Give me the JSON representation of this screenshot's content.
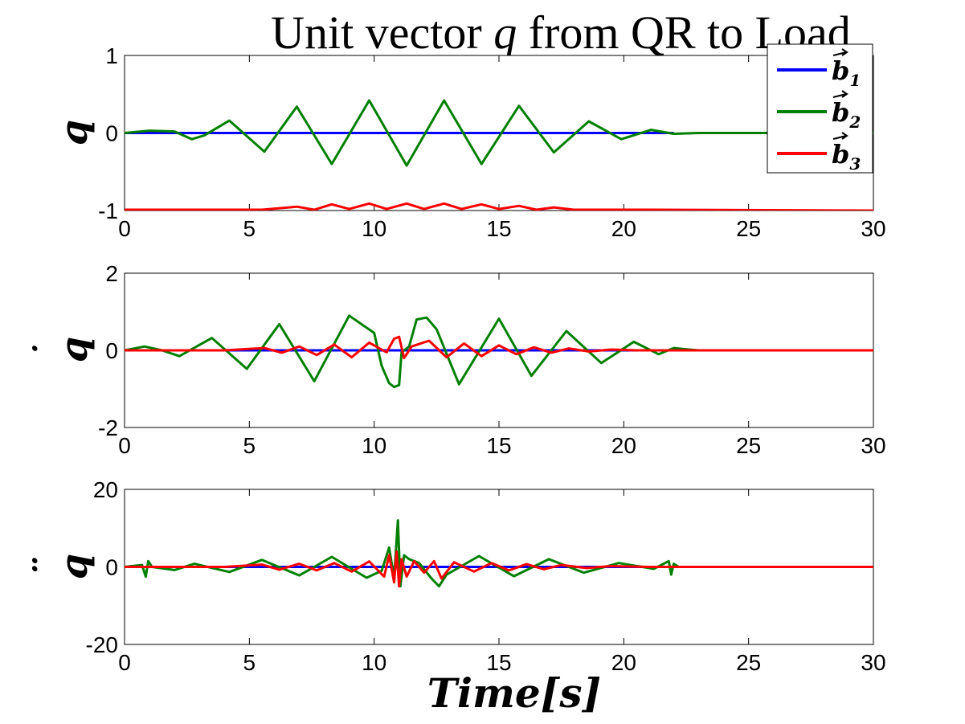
{
  "chart_data": [
    {
      "type": "line",
      "title": "Unit vector q from QR to Load",
      "title_plain": "Unit vector ",
      "title_var": "q",
      "title_rest": " from QR to Load",
      "xlabel": "",
      "ylabel": "q",
      "ylabel_accent": "",
      "xlim": [
        0,
        30
      ],
      "ylim": [
        -1,
        1
      ],
      "xticks": [
        "0",
        "5",
        "10",
        "15",
        "20",
        "25",
        "30"
      ],
      "yticks": [
        "-1",
        "0",
        "1"
      ],
      "grid": false,
      "legend": {
        "position": "top-right",
        "entries": [
          {
            "name": "b1",
            "base": "b",
            "sub": "1",
            "color": "#0000ff"
          },
          {
            "name": "b2",
            "base": "b",
            "sub": "2",
            "color": "#008000"
          },
          {
            "name": "b3",
            "base": "b",
            "sub": "3",
            "color": "#ff0000"
          }
        ]
      },
      "series": [
        {
          "name": "b1",
          "color": "#0000ff",
          "x": [
            0,
            22
          ],
          "y": [
            0,
            0
          ]
        },
        {
          "name": "b2",
          "color": "#008000",
          "x": [
            0,
            1.0,
            2.0,
            2.7,
            3.2,
            4.2,
            5.6,
            6.9,
            8.3,
            9.8,
            11.3,
            12.8,
            14.3,
            15.8,
            17.2,
            18.6,
            19.9,
            21.1,
            22.0,
            23,
            30
          ],
          "y": [
            0,
            0.03,
            0.02,
            -0.08,
            -0.03,
            0.16,
            -0.24,
            0.34,
            -0.4,
            0.42,
            -0.42,
            0.42,
            -0.4,
            0.35,
            -0.25,
            0.15,
            -0.08,
            0.04,
            -0.01,
            0,
            0
          ]
        },
        {
          "name": "b3",
          "color": "#ff0000",
          "x": [
            0,
            5.5,
            6.9,
            7.6,
            8.3,
            9.0,
            9.8,
            10.5,
            11.3,
            12.0,
            12.8,
            13.5,
            14.3,
            15.0,
            15.8,
            16.5,
            17.2,
            18.0,
            19.0,
            21.0,
            30
          ],
          "y": [
            -0.99,
            -0.99,
            -0.95,
            -0.99,
            -0.92,
            -0.98,
            -0.91,
            -0.98,
            -0.91,
            -0.98,
            -0.91,
            -0.98,
            -0.92,
            -0.98,
            -0.94,
            -0.99,
            -0.96,
            -0.99,
            -0.99,
            -0.99,
            -1.0
          ]
        }
      ]
    },
    {
      "type": "line",
      "xlabel": "",
      "ylabel": "q",
      "ylabel_accent": "˙",
      "xlim": [
        0,
        30
      ],
      "ylim": [
        -2,
        2
      ],
      "xticks": [
        "0",
        "5",
        "10",
        "15",
        "20",
        "25",
        "30"
      ],
      "yticks": [
        "-2",
        "0",
        "2"
      ],
      "grid": false,
      "series": [
        {
          "name": "b1",
          "color": "#0000ff",
          "x": [
            0,
            22.5
          ],
          "y": [
            0,
            0
          ]
        },
        {
          "name": "b2",
          "color": "#008000",
          "x": [
            0,
            0.8,
            1.5,
            2.2,
            3.5,
            4.9,
            6.2,
            7.6,
            9.0,
            10.0,
            10.3,
            10.6,
            10.8,
            11.0,
            11.1,
            11.4,
            11.7,
            12.1,
            12.5,
            13.4,
            15.0,
            16.3,
            17.7,
            19.1,
            20.4,
            21.4,
            22.0,
            22.6,
            23,
            30
          ],
          "y": [
            0,
            0.1,
            0,
            -0.15,
            0.32,
            -0.48,
            0.68,
            -0.8,
            0.9,
            0.45,
            -0.4,
            -0.85,
            -0.95,
            -0.9,
            -0.05,
            0.1,
            0.8,
            0.85,
            0.55,
            -0.88,
            0.82,
            -0.66,
            0.5,
            -0.33,
            0.22,
            -0.1,
            0.06,
            0.02,
            0,
            0
          ]
        },
        {
          "name": "b3",
          "color": "#ff0000",
          "x": [
            0,
            2.0,
            4.0,
            5.6,
            6.3,
            7.0,
            7.7,
            8.4,
            9.1,
            9.8,
            10.5,
            10.8,
            11.0,
            11.2,
            11.5,
            12.2,
            12.9,
            13.6,
            14.3,
            15.0,
            15.7,
            16.4,
            17.1,
            17.8,
            18.6,
            19.5,
            20.5,
            22.0,
            30
          ],
          "y": [
            0,
            0,
            0,
            0.06,
            -0.06,
            0.1,
            -0.12,
            0.15,
            -0.18,
            0.2,
            -0.05,
            0.3,
            0.35,
            -0.2,
            0.1,
            0.25,
            -0.18,
            0.18,
            -0.15,
            0.13,
            -0.1,
            0.08,
            -0.06,
            0.05,
            -0.03,
            0.02,
            0,
            0,
            0
          ]
        }
      ]
    },
    {
      "type": "line",
      "xlabel": "Time[s]",
      "ylabel": "q",
      "ylabel_accent": "¨",
      "xlim": [
        0,
        30
      ],
      "ylim": [
        -20,
        20
      ],
      "xticks": [
        "0",
        "5",
        "10",
        "15",
        "20",
        "25",
        "30"
      ],
      "yticks": [
        "-20",
        "0",
        "20"
      ],
      "grid": false,
      "series": [
        {
          "name": "b1",
          "color": "#0000ff",
          "x": [
            0,
            22.5
          ],
          "y": [
            0,
            0
          ]
        },
        {
          "name": "b2",
          "color": "#008000",
          "x": [
            0,
            0.7,
            0.85,
            0.95,
            1.1,
            2.0,
            2.8,
            4.2,
            5.5,
            7.0,
            8.3,
            9.7,
            10.3,
            10.6,
            10.8,
            10.95,
            11.05,
            11.2,
            11.4,
            11.8,
            12.3,
            12.6,
            12.9,
            14.2,
            15.6,
            17.0,
            18.4,
            19.8,
            21.2,
            21.8,
            21.9,
            22.0,
            22.2,
            23,
            30
          ],
          "y": [
            0,
            0.5,
            -2.5,
            1.5,
            0,
            -0.8,
            0.8,
            -1.3,
            1.8,
            -2.2,
            2.6,
            -2.8,
            -1.0,
            5.0,
            -3.0,
            12.0,
            -5.0,
            3.0,
            2.0,
            1.0,
            -3.0,
            -5.0,
            -2.0,
            2.8,
            -2.4,
            2.0,
            -1.5,
            1.0,
            -0.5,
            1.5,
            -2.0,
            0.8,
            0,
            0,
            0
          ]
        },
        {
          "name": "b3",
          "color": "#ff0000",
          "x": [
            0,
            2.0,
            4.0,
            5.5,
            6.2,
            7.0,
            7.7,
            8.4,
            9.1,
            9.8,
            10.4,
            10.6,
            10.8,
            10.9,
            11.0,
            11.1,
            11.3,
            11.6,
            12.0,
            12.4,
            12.7,
            13.2,
            14.0,
            14.7,
            15.4,
            16.1,
            16.8,
            17.5,
            18.5,
            19.5,
            21.0,
            22.0,
            30
          ],
          "y": [
            0,
            0,
            0,
            0.6,
            -0.7,
            0.8,
            -0.9,
            1.0,
            -1.2,
            1.4,
            -2.5,
            3.0,
            -4.0,
            4.0,
            -5.0,
            2.0,
            -2.5,
            1.5,
            -1.5,
            1.5,
            -3.0,
            1.2,
            -1.2,
            1.0,
            -0.9,
            0.7,
            -0.6,
            0.5,
            -0.3,
            0.2,
            0,
            0,
            0
          ]
        }
      ]
    }
  ]
}
